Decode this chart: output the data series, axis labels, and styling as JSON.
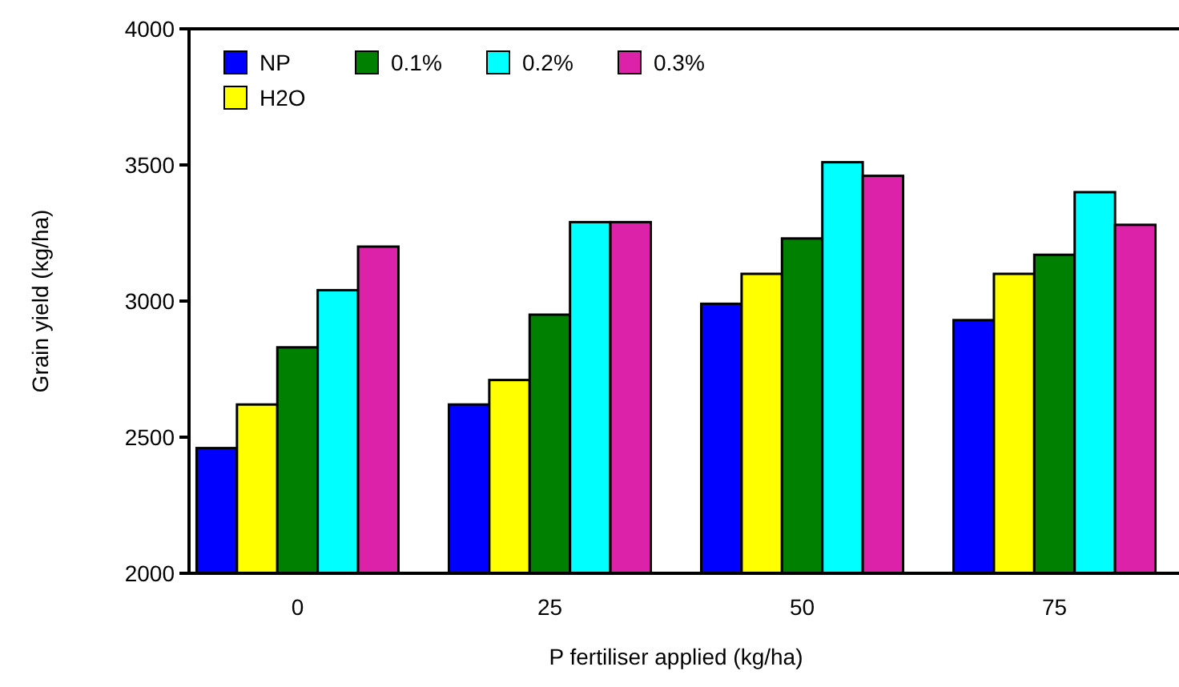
{
  "chart_data": {
    "type": "bar",
    "xlabel": "P fertiliser applied (kg/ha)",
    "ylabel": "Grain yield (kg/ha)",
    "categories": [
      "0",
      "25",
      "50",
      "75"
    ],
    "series": [
      {
        "name": "NP",
        "color": "#0000ff",
        "values": [
          2460,
          2620,
          2990,
          2930
        ]
      },
      {
        "name": "H2O",
        "color": "#ffff00",
        "values": [
          2620,
          2710,
          3100,
          3100
        ]
      },
      {
        "name": "0.1%",
        "color": "#008000",
        "values": [
          2830,
          2950,
          3230,
          3170
        ]
      },
      {
        "name": "0.2%",
        "color": "#00ffff",
        "values": [
          3040,
          3290,
          3510,
          3400
        ]
      },
      {
        "name": "0.3%",
        "color": "#dd22aa",
        "values": [
          3200,
          3290,
          3460,
          3280
        ]
      }
    ],
    "ylim": [
      2000,
      4000
    ],
    "yticks": [
      2000,
      2500,
      3000,
      3500,
      4000
    ],
    "grid": false,
    "legend": "top left"
  }
}
